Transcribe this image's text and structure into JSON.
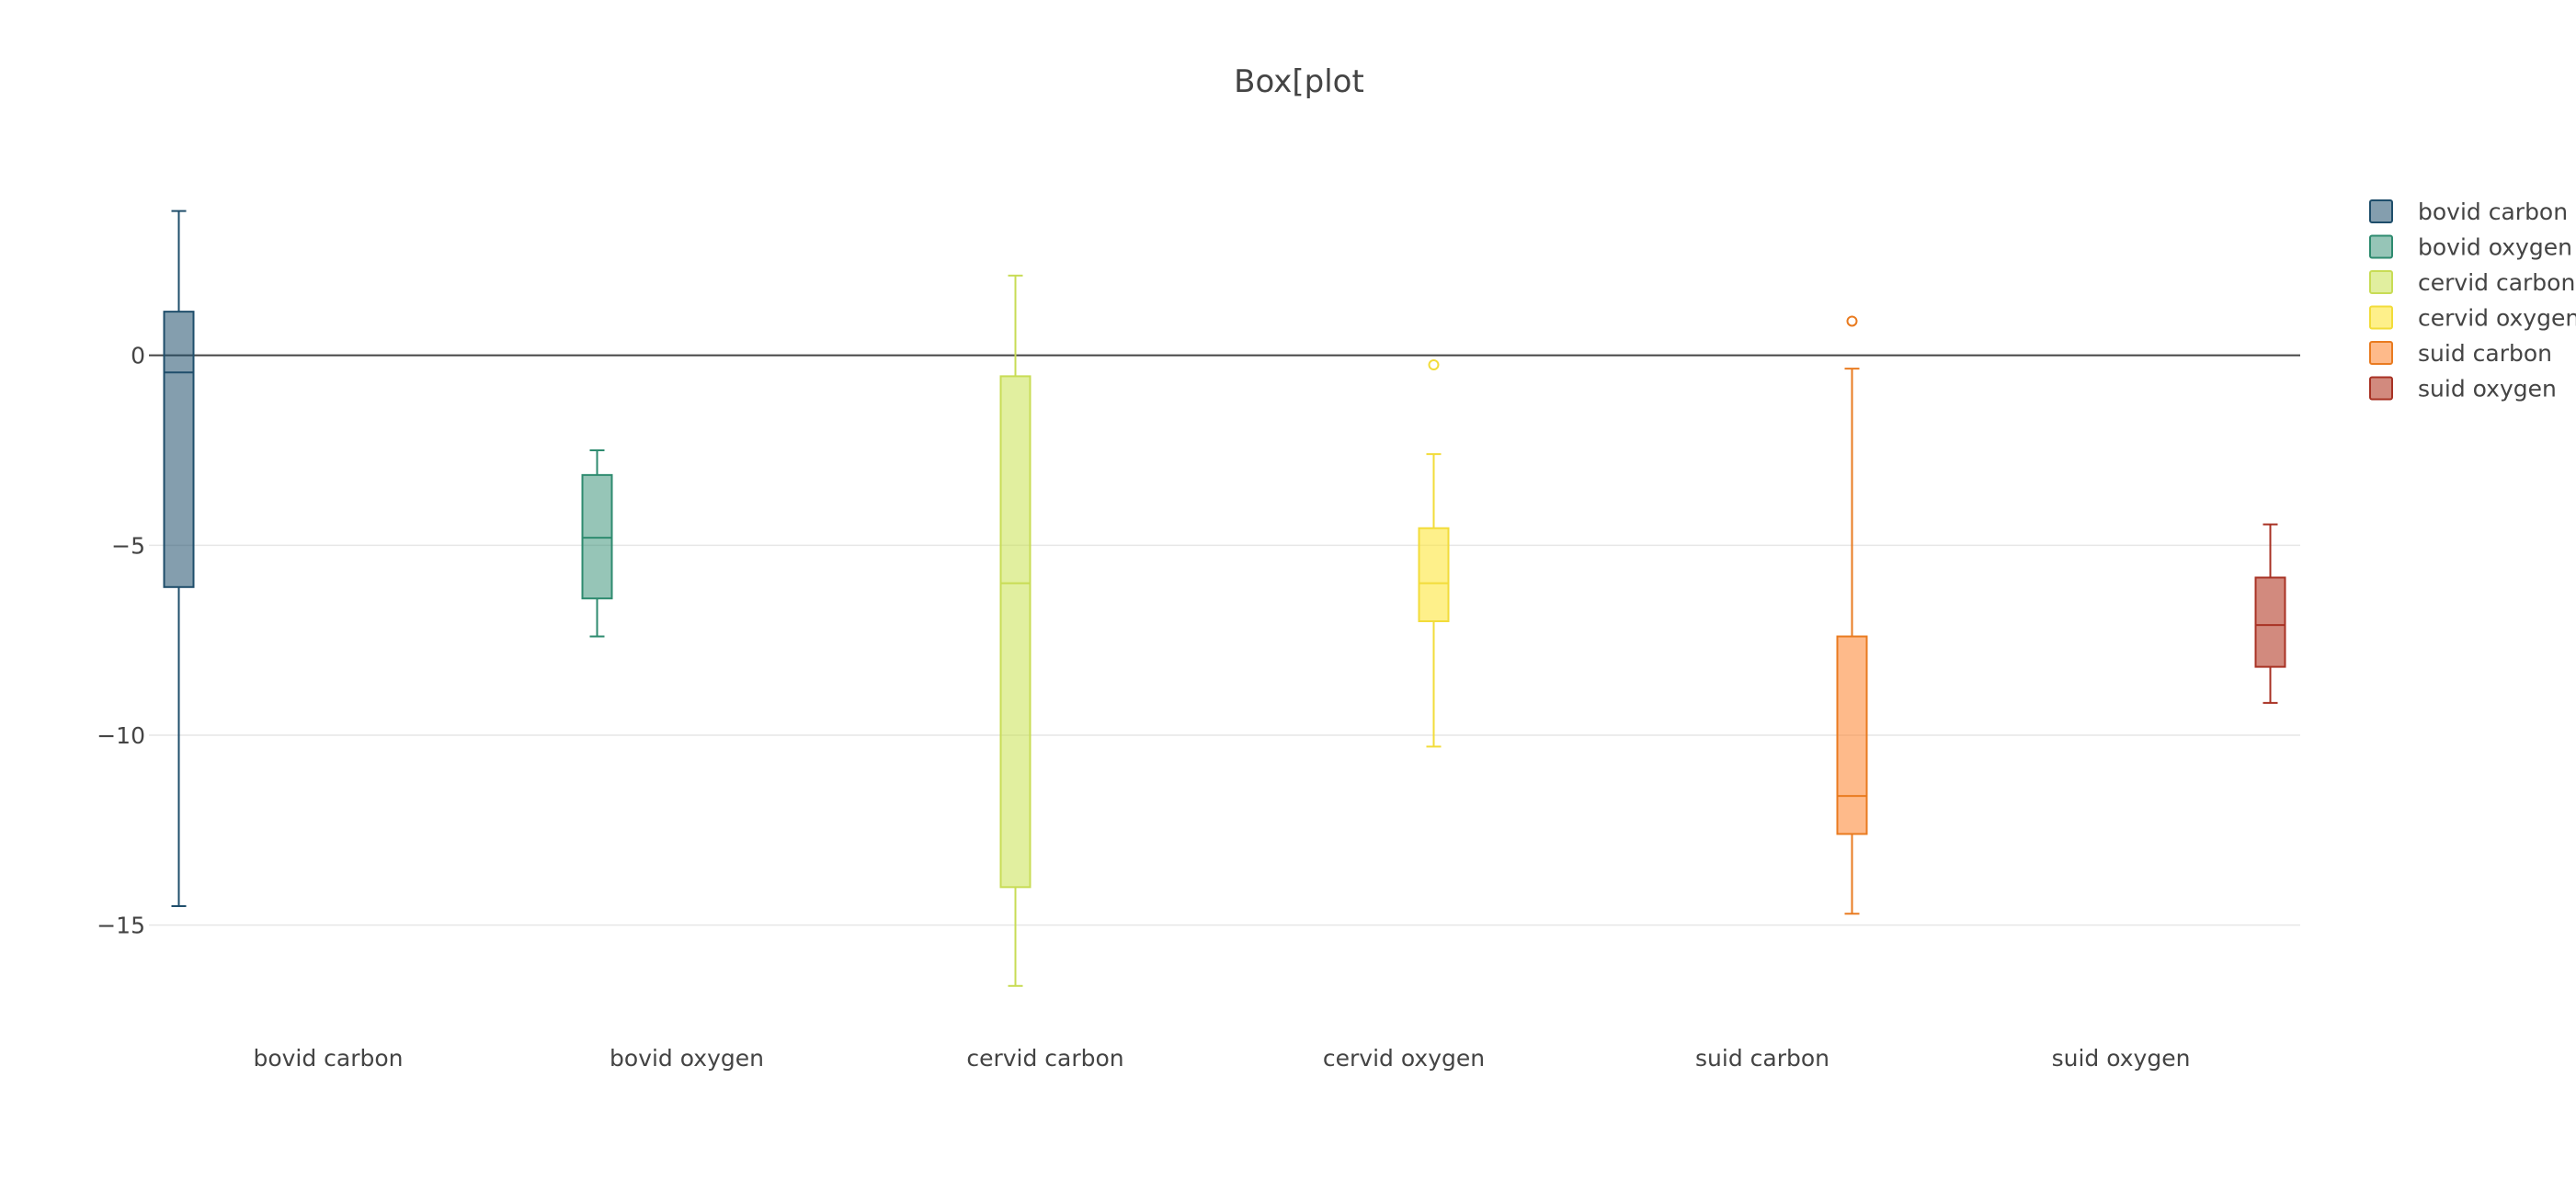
{
  "chart_data": {
    "type": "box",
    "title": "Box[plot",
    "xlabel": "",
    "ylabel": "",
    "ylim": [
      -17.5,
      5
    ],
    "yticks": [
      0,
      -5,
      -10,
      -15
    ],
    "ytick_labels": [
      "0",
      "−5",
      "−10",
      "−15"
    ],
    "zero_line": true,
    "grid": "horizontal",
    "legend_position": "top-right",
    "categories": [
      "bovid carbon",
      "bovid oxygen",
      "cervid carbon",
      "cervid oxygen",
      "suid carbon",
      "suid oxygen"
    ],
    "series": [
      {
        "name": "bovid carbon",
        "category": "bovid carbon",
        "color": "#1f4e6b",
        "fill": "rgba(31,78,107,0.55)",
        "whisker_low": -14.5,
        "q1": -6.1,
        "median": -0.45,
        "q3": 1.15,
        "whisker_high": 3.8,
        "outliers": []
      },
      {
        "name": "bovid oxygen",
        "category": "bovid oxygen",
        "color": "#2e8b6f",
        "fill": "rgba(46,139,111,0.5)",
        "whisker_low": -7.4,
        "q1": -6.4,
        "median": -4.8,
        "q3": -3.15,
        "whisker_high": -2.5,
        "outliers": []
      },
      {
        "name": "cervid carbon",
        "category": "cervid carbon",
        "color": "#c8dc55",
        "fill": "rgba(200,225,80,0.55)",
        "whisker_low": -16.6,
        "q1": -14.0,
        "median": -6.0,
        "q3": -0.55,
        "whisker_high": 2.1,
        "outliers": []
      },
      {
        "name": "cervid oxygen",
        "category": "cervid oxygen",
        "color": "#f2dc3a",
        "fill": "rgba(253,230,60,0.6)",
        "whisker_low": -10.3,
        "q1": -7.0,
        "median": -6.0,
        "q3": -4.55,
        "whisker_high": -2.6,
        "outliers": [
          -0.25
        ]
      },
      {
        "name": "suid carbon",
        "category": "suid carbon",
        "color": "#e97b20",
        "fill": "rgba(253,140,60,0.6)",
        "whisker_low": -14.7,
        "q1": -12.6,
        "median": -11.6,
        "q3": -7.4,
        "whisker_high": -0.35,
        "outliers": [
          0.9
        ]
      },
      {
        "name": "suid oxygen",
        "category": "suid oxygen",
        "color": "#a83224",
        "fill": "rgba(180,60,40,0.6)",
        "whisker_low": -9.15,
        "q1": -8.2,
        "median": -7.1,
        "q3": -5.85,
        "whisker_high": -4.45,
        "outliers": []
      }
    ]
  }
}
